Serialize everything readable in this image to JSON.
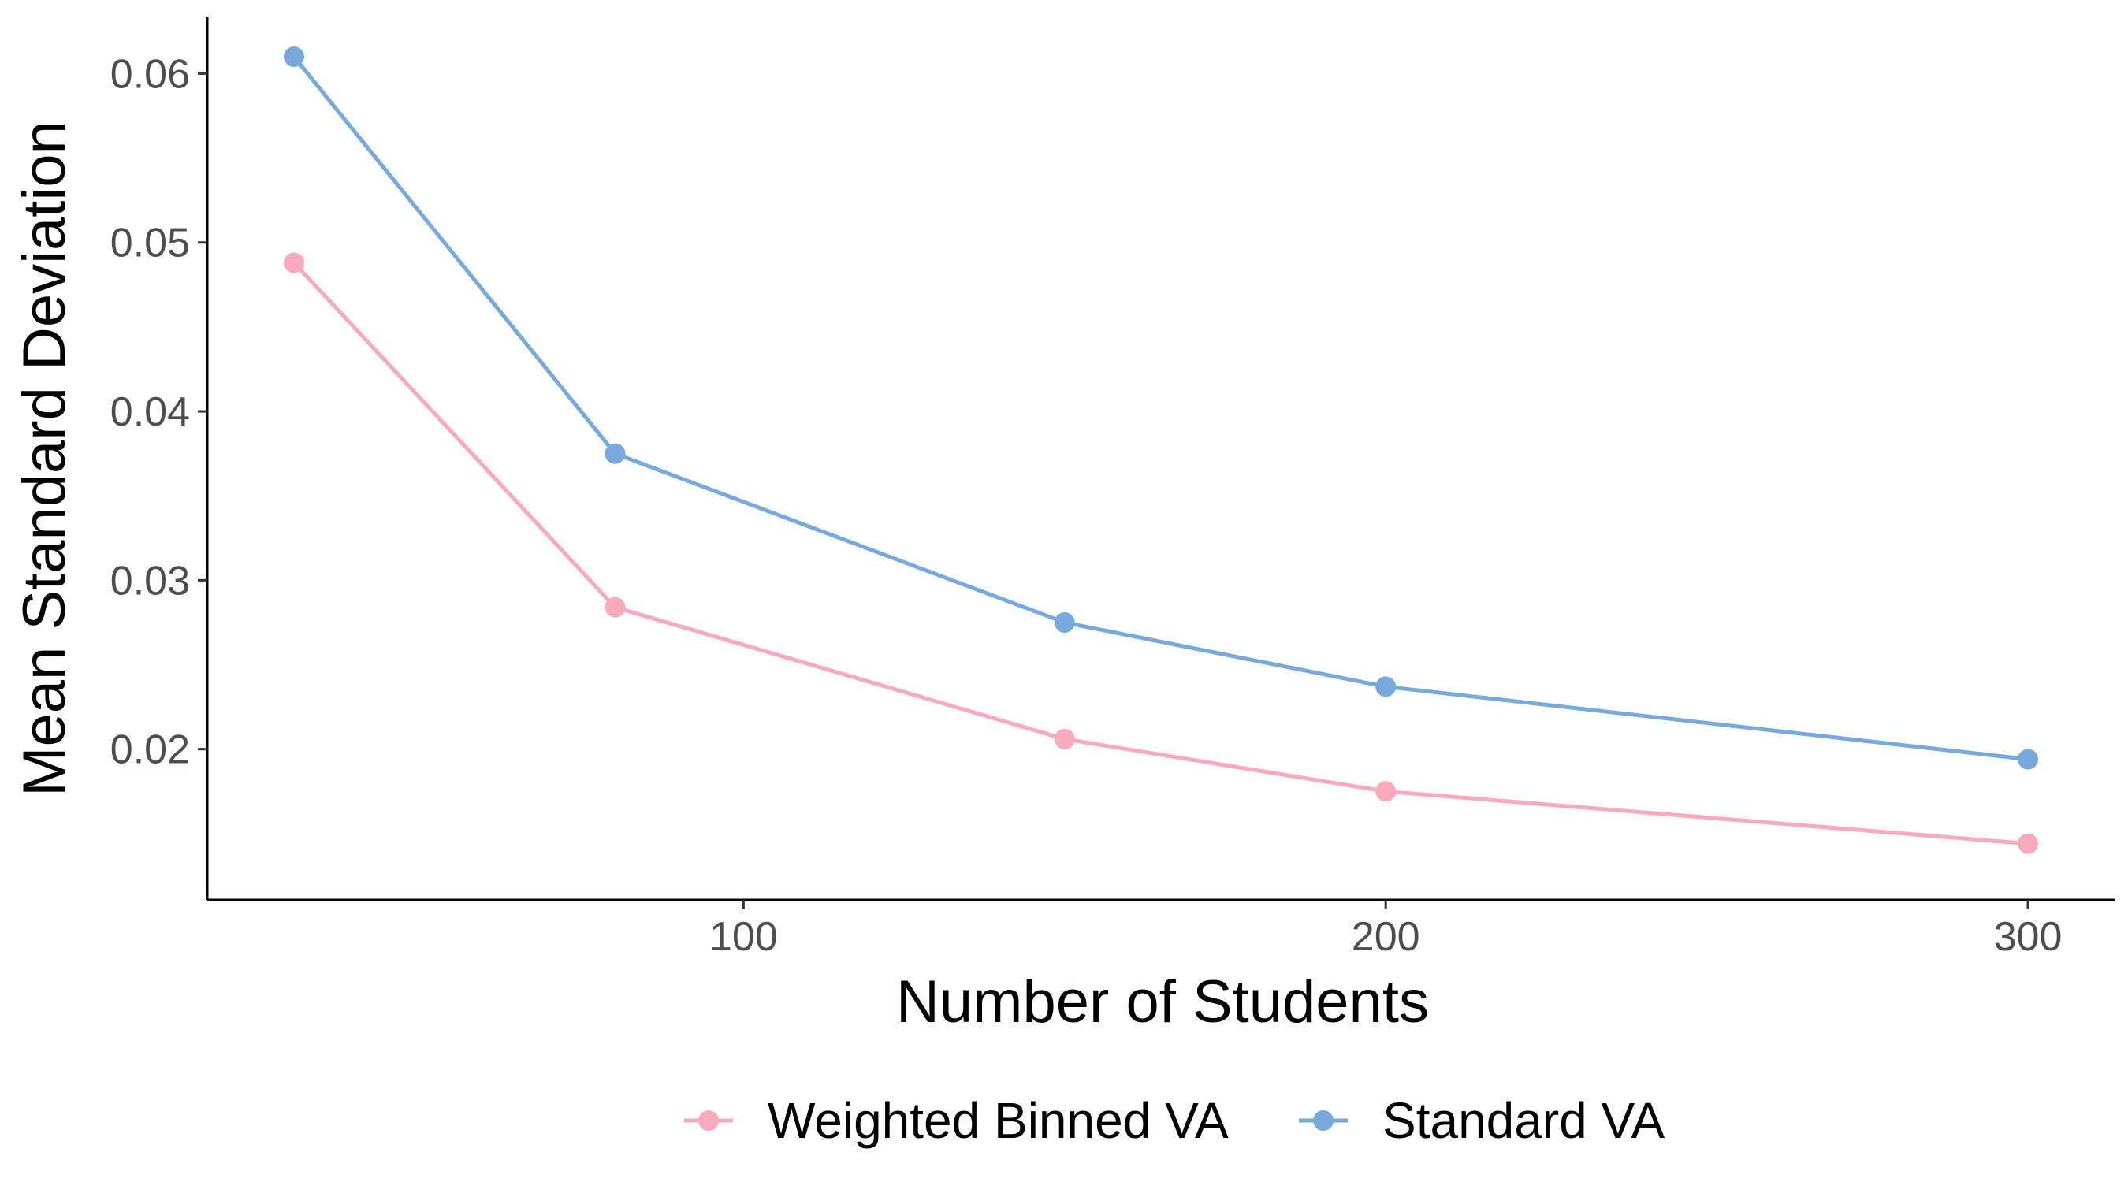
{
  "chart_data": {
    "type": "line",
    "xlabel": "Number of Students",
    "ylabel": "Mean Standard Deviation",
    "x": [
      30,
      80,
      150,
      200,
      300
    ],
    "xlim": [
      30,
      300
    ],
    "ylim": [
      0.0135,
      0.061
    ],
    "x_ticks": [
      100,
      200,
      300
    ],
    "x_tick_labels": [
      "100",
      "200",
      "300"
    ],
    "y_ticks": [
      0.02,
      0.03,
      0.04,
      0.05,
      0.06
    ],
    "y_tick_labels": [
      "0.02",
      "0.03",
      "0.04",
      "0.05",
      "0.06"
    ],
    "grid": false,
    "legend_position": "bottom",
    "series": [
      {
        "name": "Weighted Binned VA",
        "color": "#F9AABD",
        "values": [
          0.0488,
          0.0284,
          0.0206,
          0.0175,
          0.0144
        ]
      },
      {
        "name": "Standard VA",
        "color": "#77A9DC",
        "values": [
          0.061,
          0.0375,
          0.0275,
          0.0237,
          0.0194
        ]
      }
    ]
  }
}
